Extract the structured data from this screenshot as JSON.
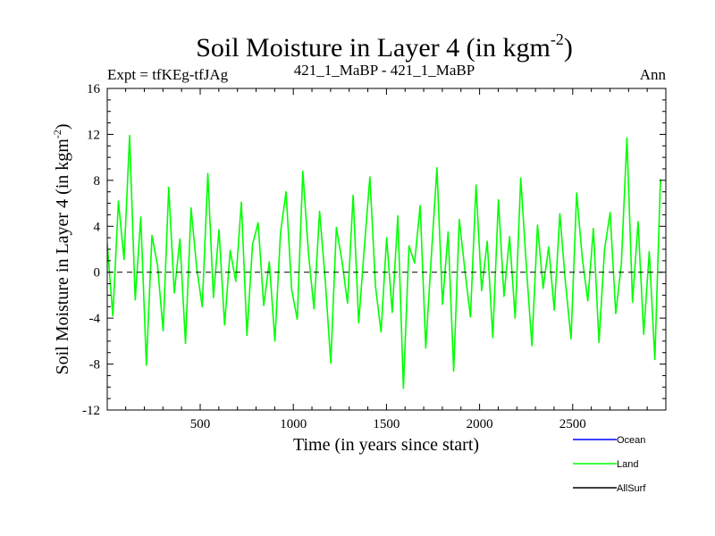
{
  "chart_data": {
    "type": "line",
    "title": "Soil Moisture in Layer 4 (in kgm",
    "title_sup": "-2",
    "title_close": ")",
    "subtitle_left": "Expt = tfKEg-tfJAg",
    "subtitle_center": "421_1_MaBP - 421_1_MaBP",
    "subtitle_right": "Ann",
    "xlabel": "Time (in years since start)",
    "ylabel": "Soil Moisture in Layer 4 (in kgm",
    "ylabel_sup": "-2",
    "ylabel_close": ")",
    "xlim": [
      1,
      3000
    ],
    "ylim": [
      -12,
      16
    ],
    "xticks": [
      500,
      1000,
      1500,
      2000,
      2500
    ],
    "xtick_labels": [
      "500",
      "1000",
      "1500",
      "2000",
      "2500"
    ],
    "yticks": [
      -12,
      -8,
      -4,
      0,
      4,
      8,
      12,
      16
    ],
    "ytick_labels": [
      "-12",
      "-8",
      "-4",
      "0",
      "4",
      "8",
      "12",
      "16"
    ],
    "zero_line": true,
    "grid": false,
    "legend_placement": "bottom-right",
    "series": [
      {
        "name": "Ocean",
        "color": "#0000ff",
        "values": []
      },
      {
        "name": "Land",
        "color": "#00ff00",
        "x_start": 1,
        "x_step": 30,
        "values": [
          2.5,
          -3.8,
          6.2,
          1.1,
          11.9,
          -2.4,
          4.8,
          -8.1,
          3.2,
          0.6,
          -5.1,
          7.4,
          -1.8,
          2.9,
          -6.2,
          5.6,
          0.4,
          -3.0,
          8.6,
          -2.2,
          3.7,
          -4.6,
          1.9,
          -0.8,
          6.1,
          -5.5,
          2.4,
          4.3,
          -2.9,
          0.9,
          -6.0,
          3.4,
          7.0,
          -1.5,
          -4.1,
          8.8,
          1.7,
          -3.2,
          5.3,
          -0.6,
          -7.9,
          3.9,
          1.0,
          -2.7,
          6.7,
          -4.4,
          2.1,
          8.3,
          -1.2,
          -5.2,
          3.0,
          -3.5,
          4.9,
          -10.1,
          2.3,
          0.8,
          5.8,
          -6.6,
          1.4,
          9.1,
          -2.8,
          3.5,
          -8.6,
          4.6,
          0.2,
          -3.9,
          7.6,
          -1.6,
          2.7,
          -5.7,
          6.3,
          -2.1,
          3.1,
          -4.0,
          8.2,
          0.5,
          -6.4,
          4.1,
          -1.4,
          2.2,
          -3.3,
          5.1,
          -0.9,
          -5.8,
          6.9,
          1.3,
          -2.5,
          3.8,
          -6.1,
          2.0,
          5.2,
          -3.6,
          0.7,
          11.7,
          -2.6,
          4.4,
          -5.4,
          1.8,
          -7.6,
          8.1
        ]
      },
      {
        "name": "AllSurf",
        "color": "#000000",
        "values": []
      }
    ]
  }
}
